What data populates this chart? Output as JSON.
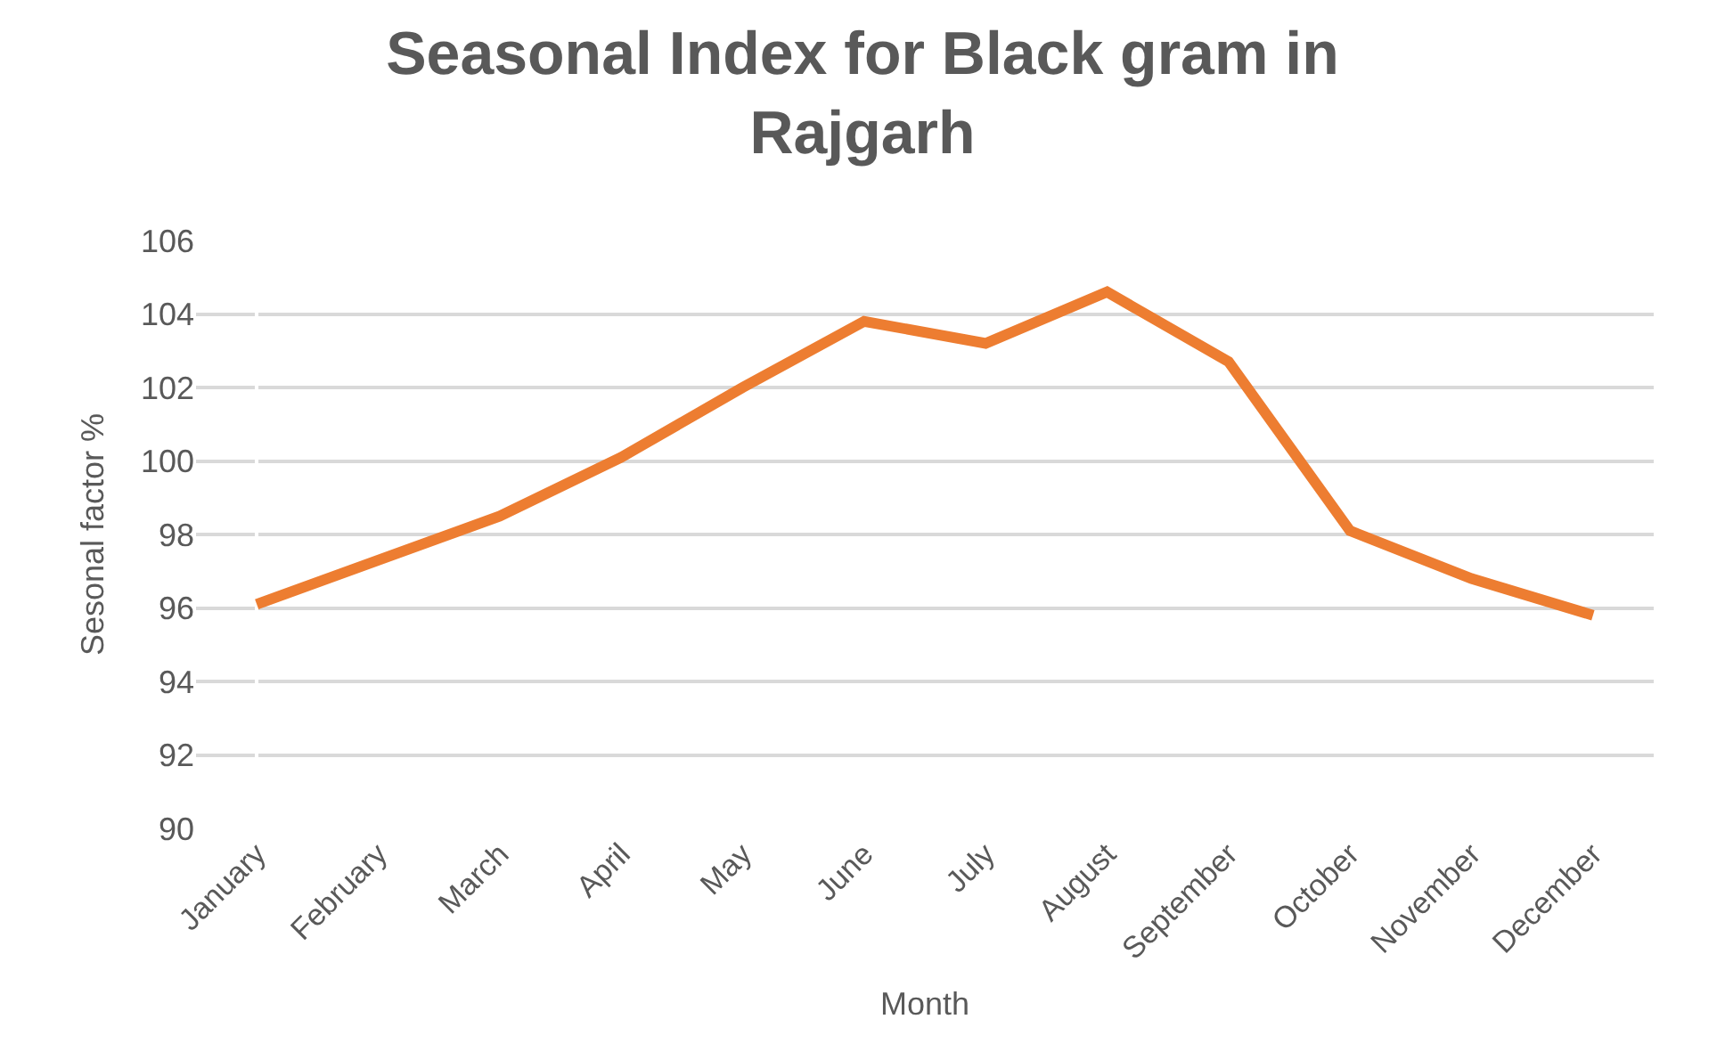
{
  "chart_data": {
    "type": "line",
    "title": "Seasonal Index for Black gram in Rajgarh",
    "xlabel": "Month",
    "ylabel": "Sesonal factor %",
    "categories": [
      "January",
      "February",
      "March",
      "April",
      "May",
      "June",
      "July",
      "August",
      "September",
      "October",
      "November",
      "December"
    ],
    "series": [
      {
        "color": "#ed7d31",
        "values": [
          96.1,
          97.3,
          98.5,
          100.1,
          102.0,
          103.8,
          103.2,
          104.6,
          102.7,
          98.1,
          96.8,
          95.8
        ]
      }
    ],
    "ylim": [
      90,
      106
    ],
    "yticks": [
      90,
      92,
      94,
      96,
      98,
      100,
      102,
      104,
      106
    ],
    "grid": "y",
    "marker": "none",
    "line_style": "solid"
  }
}
